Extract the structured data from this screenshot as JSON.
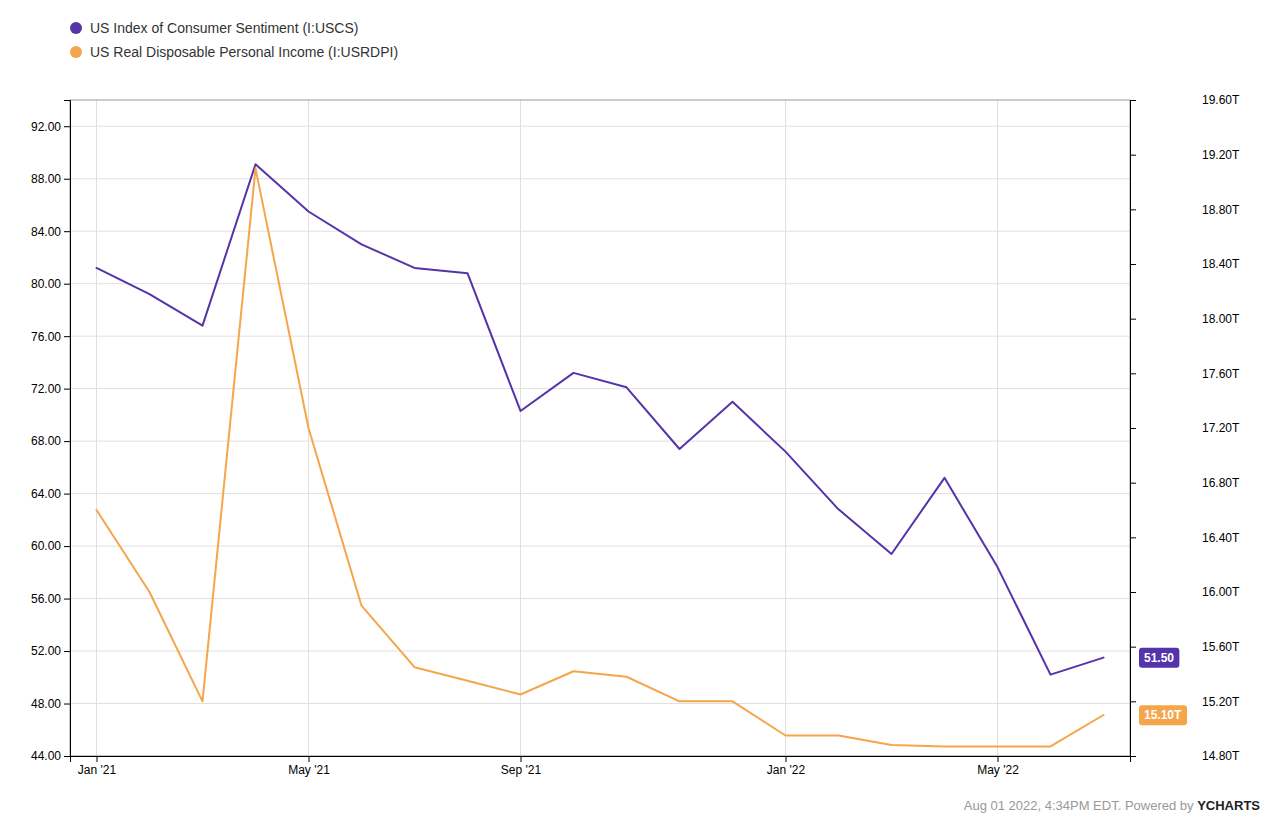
{
  "chart_data": {
    "type": "line",
    "categories": [
      "Jan '21",
      null,
      null,
      null,
      "May '21",
      null,
      null,
      null,
      "Sep '21",
      null,
      null,
      null,
      null,
      "Jan '22",
      null,
      null,
      null,
      "May '22",
      null,
      null
    ],
    "series": [
      {
        "name": "US Index of Consumer Sentiment (I:USCS)",
        "color": "#5533aa",
        "axis": "y",
        "values": [
          81.2,
          79.2,
          76.8,
          89.1,
          85.5,
          83.0,
          81.2,
          80.8,
          70.3,
          73.2,
          72.1,
          67.4,
          71.0,
          67.2,
          62.8,
          59.4,
          65.2,
          58.4,
          50.2,
          51.5
        ],
        "value_labels": [
          null,
          null,
          null,
          null,
          null,
          null,
          null,
          null,
          null,
          null,
          null,
          null,
          null,
          null,
          null,
          null,
          null,
          null,
          null,
          "51.50"
        ]
      },
      {
        "name": "US Real Disposable Personal Income (I:USRDPI)",
        "color": "#f5a54a",
        "axis": "y2",
        "values": [
          16.6,
          16.0,
          15.2,
          19.1,
          17.2,
          15.9,
          15.45,
          15.35,
          15.25,
          15.42,
          15.38,
          15.2,
          15.2,
          14.95,
          14.95,
          14.88,
          14.87,
          14.87,
          14.87,
          15.1
        ],
        "value_labels": [
          null,
          null,
          null,
          null,
          null,
          null,
          null,
          null,
          null,
          null,
          null,
          null,
          null,
          null,
          null,
          null,
          null,
          null,
          null,
          "15.10T"
        ]
      }
    ],
    "ylim": [
      44.0,
      94.0
    ],
    "yticks": [
      {
        "value": 44.0,
        "label": "44.00"
      },
      {
        "value": 48.0,
        "label": "48.00"
      },
      {
        "value": 52.0,
        "label": "52.00"
      },
      {
        "value": 56.0,
        "label": "56.00"
      },
      {
        "value": 60.0,
        "label": "60.00"
      },
      {
        "value": 64.0,
        "label": "64.00"
      },
      {
        "value": 68.0,
        "label": "68.00"
      },
      {
        "value": 72.0,
        "label": "72.00"
      },
      {
        "value": 76.0,
        "label": "76.00"
      },
      {
        "value": 80.0,
        "label": "80.00"
      },
      {
        "value": 84.0,
        "label": "84.00"
      },
      {
        "value": 88.0,
        "label": "88.00"
      },
      {
        "value": 92.0,
        "label": "92.00"
      }
    ],
    "y2lim": [
      14.8,
      19.6
    ],
    "y2ticks": [
      {
        "value": 14.8,
        "label": "14.80T"
      },
      {
        "value": 15.2,
        "label": "15.20T"
      },
      {
        "value": 15.6,
        "label": "15.60T"
      },
      {
        "value": 16.0,
        "label": "16.00T"
      },
      {
        "value": 16.4,
        "label": "16.40T"
      },
      {
        "value": 16.8,
        "label": "16.80T"
      },
      {
        "value": 17.2,
        "label": "17.20T"
      },
      {
        "value": 17.6,
        "label": "17.60T"
      },
      {
        "value": 18.0,
        "label": "18.00T"
      },
      {
        "value": 18.4,
        "label": "18.40T"
      },
      {
        "value": 18.8,
        "label": "18.80T"
      },
      {
        "value": 19.2,
        "label": "19.20T"
      },
      {
        "value": 19.6,
        "label": "19.60T"
      }
    ],
    "grid": true,
    "legend": "top-left",
    "annotations": [
      "Aug 01 2022, 4:34PM EDT. Powered by ",
      "YCHARTS"
    ]
  }
}
